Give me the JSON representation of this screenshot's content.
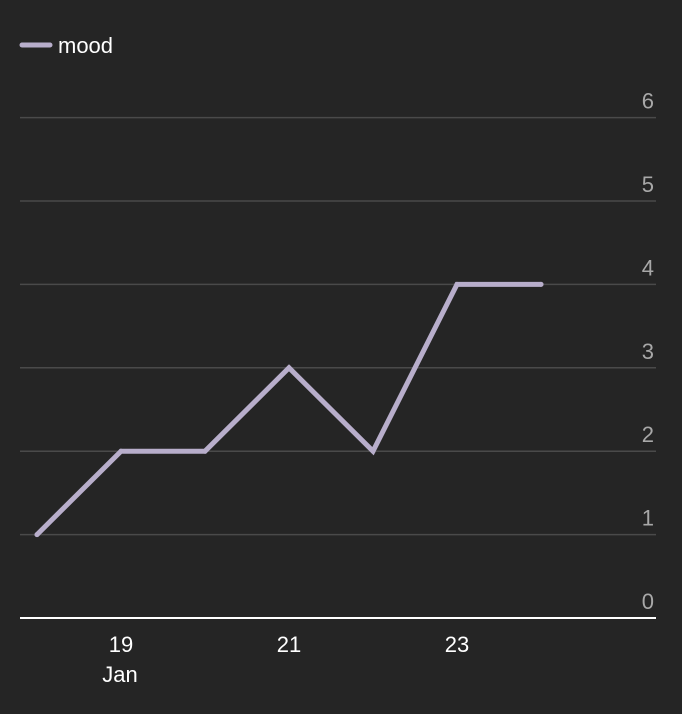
{
  "chart_data": {
    "type": "line",
    "title": "",
    "xlabel": "",
    "ylabel": "",
    "x": [
      "Jan 18",
      "Jan 19",
      "Jan 20",
      "Jan 21",
      "Jan 22",
      "Jan 23",
      "Jan 24"
    ],
    "series": [
      {
        "name": "mood",
        "color": "#b8aecb",
        "values": [
          1,
          2,
          2,
          3,
          2,
          4,
          4
        ]
      }
    ],
    "ylim": [
      0,
      6
    ],
    "yticks": [
      "0",
      "1",
      "2",
      "3",
      "4",
      "5",
      "6"
    ],
    "xticks": [
      "19",
      "21",
      "23"
    ],
    "xtick_sublabel": "Jan",
    "grid": true,
    "legend": "top-left",
    "y_axis_side": "right",
    "background": "#252525",
    "gridline_color": "#4a4a4a",
    "baseline_color": "#ffffff"
  }
}
